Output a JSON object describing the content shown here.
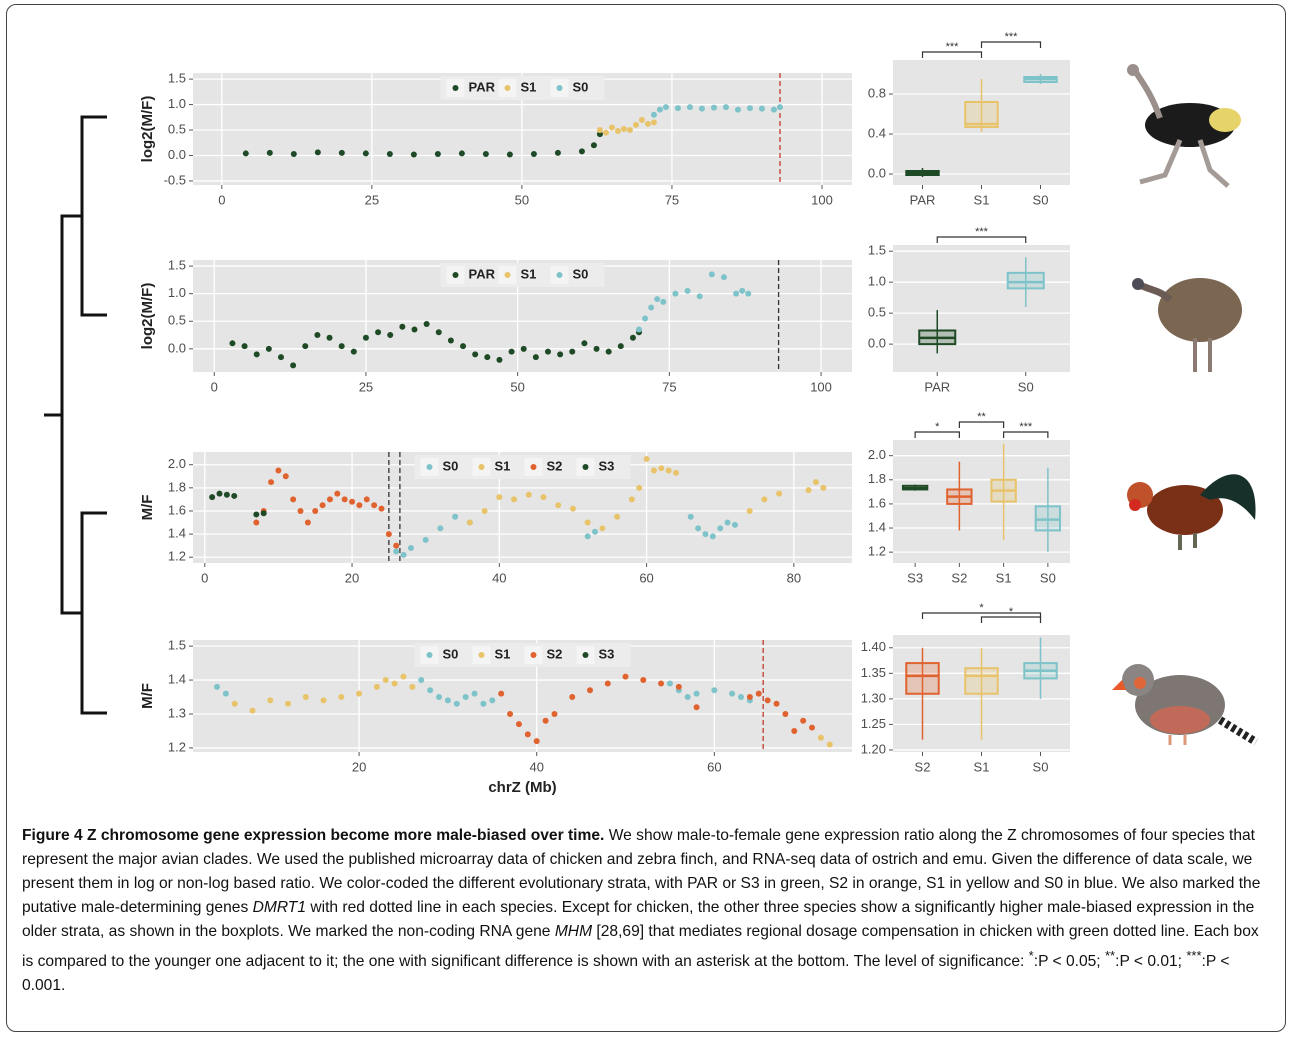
{
  "chart_data": [
    {
      "type": "scatter",
      "ylabel": "log2(M/F)",
      "xlim": [
        -4.8,
        105
      ],
      "ylim": [
        -0.58,
        1.62
      ],
      "xticks": [
        0,
        25,
        50,
        75,
        100
      ],
      "yticks": [
        -0.5,
        {
          "value": 0,
          "label": "0.0"
        },
        0.5,
        {
          "value": 1,
          "label": "1.0"
        },
        1.5
      ],
      "grid": true,
      "legend": "top",
      "markers": [
        {
          "x": 93,
          "color": "#c0392b"
        }
      ],
      "series": [
        {
          "name": "PAR",
          "color": "#1f4a26",
          "x": [
            4,
            8,
            12,
            16,
            20,
            24,
            28,
            32,
            36,
            40,
            44,
            48,
            52,
            56,
            60,
            62,
            63
          ],
          "values": [
            0.04,
            0.05,
            0.03,
            0.06,
            0.05,
            0.04,
            0.03,
            0.02,
            0.03,
            0.04,
            0.03,
            0.02,
            0.03,
            0.05,
            0.08,
            0.2,
            0.42
          ]
        },
        {
          "name": "S1",
          "color": "#e8c36a",
          "x": [
            63,
            64,
            65,
            66,
            67,
            68,
            69,
            70,
            71,
            72
          ],
          "values": [
            0.5,
            0.45,
            0.55,
            0.48,
            0.52,
            0.5,
            0.6,
            0.7,
            0.62,
            0.65
          ]
        },
        {
          "name": "S0",
          "color": "#7ec3c9",
          "x": [
            72,
            73,
            74,
            76,
            78,
            80,
            82,
            84,
            86,
            88,
            90,
            92,
            93
          ],
          "values": [
            0.8,
            0.9,
            0.95,
            0.93,
            0.95,
            0.92,
            0.94,
            0.95,
            0.9,
            0.93,
            0.92,
            0.9,
            0.95
          ]
        }
      ]
    },
    {
      "type": "box",
      "ylim": [
        -0.11,
        1.14
      ],
      "yticks": [
        {
          "value": 0,
          "label": "0.0"
        },
        0.4,
        0.8
      ],
      "categories": [
        "PAR",
        "S1",
        "S0"
      ],
      "colors": [
        "#1f4a26",
        "#e8c36a",
        "#7ec3c9"
      ],
      "boxes": [
        {
          "min": -0.03,
          "q1": -0.01,
          "median": 0.01,
          "q3": 0.03,
          "max": 0.06
        },
        {
          "min": 0.42,
          "q1": 0.47,
          "median": 0.5,
          "q3": 0.72,
          "max": 0.95
        },
        {
          "min": 0.9,
          "q1": 0.92,
          "median": 0.95,
          "q3": 0.97,
          "max": 1.0
        }
      ],
      "significance": [
        {
          "between": [
            "PAR",
            "S1"
          ],
          "label": "***"
        },
        {
          "between": [
            "S1",
            "S0"
          ],
          "label": "***"
        }
      ]
    },
    {
      "type": "scatter",
      "ylabel": "log2(M/F)",
      "xlim": [
        -3.5,
        105.1
      ],
      "ylim": [
        -0.42,
        1.61
      ],
      "xticks": [
        0,
        25,
        50,
        75,
        100
      ],
      "yticks": [
        {
          "value": 0,
          "label": "0.0"
        },
        0.5,
        {
          "value": 1,
          "label": "1.0"
        },
        1.5
      ],
      "grid": true,
      "legend": "top",
      "markers": [
        {
          "x": 93,
          "color": "#333333"
        }
      ],
      "series": [
        {
          "name": "PAR",
          "color": "#1f4a26",
          "x": [
            3,
            5,
            7,
            9,
            11,
            13,
            15,
            17,
            19,
            21,
            23,
            25,
            27,
            29,
            31,
            33,
            35,
            37,
            39,
            41,
            43,
            45,
            47,
            49,
            51,
            53,
            55,
            57,
            59,
            61,
            63,
            65,
            67,
            69,
            70
          ],
          "values": [
            0.1,
            0.05,
            -0.1,
            0.0,
            -0.15,
            -0.3,
            0.05,
            0.25,
            0.2,
            0.05,
            -0.05,
            0.2,
            0.3,
            0.25,
            0.4,
            0.35,
            0.45,
            0.3,
            0.15,
            0.05,
            -0.1,
            -0.15,
            -0.2,
            -0.05,
            0.0,
            -0.15,
            -0.05,
            -0.1,
            -0.05,
            0.1,
            0.0,
            -0.05,
            0.05,
            0.2,
            0.3
          ]
        },
        {
          "name": "S1",
          "color": "#e8c36a",
          "x": [],
          "values": []
        },
        {
          "name": "S0",
          "color": "#7ec3c9",
          "x": [
            70,
            71,
            72,
            73,
            74,
            76,
            78,
            80,
            82,
            84,
            86,
            87,
            88
          ],
          "values": [
            0.35,
            0.55,
            0.75,
            0.9,
            0.85,
            1.0,
            1.05,
            0.95,
            1.35,
            1.3,
            1.0,
            1.05,
            1.0
          ]
        }
      ]
    },
    {
      "type": "box",
      "ylim": [
        -0.45,
        1.6
      ],
      "yticks": [
        {
          "value": 0,
          "label": "0.0"
        },
        0.5,
        {
          "value": 1,
          "label": "1.0"
        },
        1.5
      ],
      "categories": [
        "PAR",
        "S0"
      ],
      "colors": [
        "#1f4a26",
        "#7ec3c9"
      ],
      "boxes": [
        {
          "min": -0.15,
          "q1": 0.0,
          "median": 0.1,
          "q3": 0.22,
          "max": 0.55
        },
        {
          "min": 0.6,
          "q1": 0.9,
          "median": 1.0,
          "q3": 1.15,
          "max": 1.4
        }
      ],
      "significance": [
        {
          "between": [
            "PAR",
            "S0"
          ],
          "label": "***"
        }
      ]
    },
    {
      "type": "scatter",
      "ylabel": "M/F",
      "xlim": [
        -1.6,
        87.9
      ],
      "ylim": [
        1.15,
        2.11
      ],
      "xticks": [
        0,
        20,
        40,
        60,
        80
      ],
      "yticks": [
        1.2,
        1.4,
        1.6,
        1.8,
        {
          "value": 2,
          "label": "2.0"
        }
      ],
      "grid": true,
      "legend": "top",
      "markers": [
        {
          "x": 25,
          "color": "#333333"
        },
        {
          "x": 26.5,
          "color": "#333333"
        }
      ],
      "series": [
        {
          "name": "S0",
          "color": "#7ec3c9",
          "x": [
            26,
            27,
            28,
            30,
            32,
            34,
            36,
            52,
            53,
            66,
            67,
            68,
            69,
            70,
            71,
            72
          ],
          "values": [
            1.25,
            1.22,
            1.28,
            1.35,
            1.45,
            1.55,
            1.5,
            1.38,
            1.42,
            1.55,
            1.45,
            1.4,
            1.38,
            1.45,
            1.5,
            1.48
          ]
        },
        {
          "name": "S1",
          "color": "#e8c36a",
          "x": [
            36,
            38,
            40,
            42,
            44,
            46,
            48,
            50,
            52,
            54,
            56,
            58,
            59,
            60,
            61,
            62,
            63,
            64,
            74,
            76,
            78,
            82,
            83,
            84
          ],
          "values": [
            1.5,
            1.6,
            1.72,
            1.7,
            1.74,
            1.72,
            1.65,
            1.62,
            1.5,
            1.45,
            1.55,
            1.7,
            1.8,
            2.05,
            1.95,
            1.97,
            1.95,
            1.93,
            1.6,
            1.7,
            1.75,
            1.78,
            1.85,
            1.8
          ]
        },
        {
          "name": "S2",
          "color": "#e0632f",
          "x": [
            7,
            8,
            9,
            10,
            11,
            12,
            13,
            14,
            15,
            16,
            17,
            18,
            19,
            20,
            21,
            22,
            23,
            24,
            25,
            26
          ],
          "values": [
            1.5,
            1.6,
            1.85,
            1.95,
            1.9,
            1.7,
            1.6,
            1.5,
            1.6,
            1.65,
            1.7,
            1.75,
            1.7,
            1.68,
            1.65,
            1.7,
            1.65,
            1.62,
            1.4,
            1.3
          ]
        },
        {
          "name": "S3",
          "color": "#1f4a26",
          "x": [
            1,
            2,
            3,
            4,
            7,
            8
          ],
          "values": [
            1.72,
            1.75,
            1.74,
            1.73,
            1.57,
            1.58
          ]
        }
      ]
    },
    {
      "type": "box",
      "ylim": [
        1.11,
        2.13
      ],
      "yticks": [
        1.2,
        1.4,
        1.6,
        1.8,
        {
          "value": 2,
          "label": "2.0"
        }
      ],
      "categories": [
        "S3",
        "S2",
        "S1",
        "S0"
      ],
      "colors": [
        "#1f4a26",
        "#e0632f",
        "#e8c36a",
        "#7ec3c9"
      ],
      "boxes": [
        {
          "min": 1.71,
          "q1": 1.72,
          "median": 1.73,
          "q3": 1.75,
          "max": 1.76
        },
        {
          "min": 1.38,
          "q1": 1.6,
          "median": 1.66,
          "q3": 1.72,
          "max": 1.95
        },
        {
          "min": 1.3,
          "q1": 1.62,
          "median": 1.71,
          "q3": 1.8,
          "max": 2.1
        },
        {
          "min": 1.2,
          "q1": 1.38,
          "median": 1.47,
          "q3": 1.58,
          "max": 1.9
        }
      ],
      "significance": [
        {
          "between": [
            "S3",
            "S2"
          ],
          "label": "*"
        },
        {
          "between": [
            "S2",
            "S1"
          ],
          "label": "**"
        },
        {
          "between": [
            "S1",
            "S0"
          ],
          "label": "***"
        }
      ]
    },
    {
      "type": "scatter",
      "ylabel": "M/F",
      "xlabel": "chrZ (Mb)",
      "xlim": [
        1.3,
        75.5
      ],
      "ylim": [
        1.188,
        1.518
      ],
      "xticks": [
        20,
        40,
        60
      ],
      "yticks": [
        1.2,
        1.3,
        1.4,
        1.5
      ],
      "grid": true,
      "legend": "top",
      "markers": [
        {
          "x": 65.5,
          "color": "#c0392b"
        }
      ],
      "series": [
        {
          "name": "S0",
          "color": "#7ec3c9",
          "x": [
            4,
            5,
            27,
            28,
            29,
            30,
            31,
            32,
            33,
            34,
            35,
            55,
            56,
            57,
            58,
            60,
            62,
            63,
            64
          ],
          "values": [
            1.38,
            1.36,
            1.4,
            1.37,
            1.35,
            1.34,
            1.33,
            1.35,
            1.36,
            1.33,
            1.34,
            1.39,
            1.37,
            1.35,
            1.36,
            1.37,
            1.36,
            1.35,
            1.34
          ]
        },
        {
          "name": "S1",
          "color": "#e8c36a",
          "x": [
            6,
            8,
            10,
            12,
            14,
            16,
            18,
            20,
            22,
            23,
            24,
            25,
            26,
            72,
            73
          ],
          "values": [
            1.33,
            1.31,
            1.34,
            1.33,
            1.35,
            1.34,
            1.35,
            1.36,
            1.38,
            1.4,
            1.39,
            1.41,
            1.38,
            1.23,
            1.21
          ]
        },
        {
          "name": "S2",
          "color": "#e0632f",
          "x": [
            36,
            37,
            38,
            39,
            40,
            41,
            42,
            44,
            46,
            48,
            50,
            52,
            54,
            56,
            58,
            64,
            65,
            66,
            67,
            68,
            69,
            70,
            71
          ],
          "values": [
            1.36,
            1.3,
            1.27,
            1.24,
            1.22,
            1.28,
            1.3,
            1.35,
            1.37,
            1.39,
            1.41,
            1.4,
            1.39,
            1.38,
            1.32,
            1.35,
            1.36,
            1.34,
            1.33,
            1.3,
            1.25,
            1.28,
            1.26
          ]
        },
        {
          "name": "S3",
          "color": "#1f4a26",
          "x": [],
          "values": []
        }
      ]
    },
    {
      "type": "box",
      "ylim": [
        1.196,
        1.425
      ],
      "yticks": [
        {
          "value": 1.2,
          "label": "1.20"
        },
        {
          "value": 1.25,
          "label": "1.25"
        },
        {
          "value": 1.3,
          "label": "1.30"
        },
        {
          "value": 1.35,
          "label": "1.35"
        },
        {
          "value": 1.4,
          "label": "1.40"
        }
      ],
      "categories": [
        "S2",
        "S1",
        "S0"
      ],
      "colors": [
        "#e0632f",
        "#e8c36a",
        "#7ec3c9"
      ],
      "boxes": [
        {
          "min": 1.22,
          "q1": 1.31,
          "median": 1.345,
          "q3": 1.37,
          "max": 1.4
        },
        {
          "min": 1.22,
          "q1": 1.31,
          "median": 1.345,
          "q3": 1.36,
          "max": 1.4
        },
        {
          "min": 1.3,
          "q1": 1.34,
          "median": 1.355,
          "q3": 1.37,
          "max": 1.42
        }
      ],
      "significance": [
        {
          "between": [
            "S2",
            "S0"
          ],
          "label": "*"
        },
        {
          "between": [
            "S1",
            "S0"
          ],
          "label": "*"
        }
      ]
    }
  ],
  "caption": {
    "title": "Figure 4 Z chromosome gene expression become more male-biased over time.",
    "body": [
      " We show male-to-female gene expression ratio along the Z chromosomes of four species that represent the major avian clades. We used the published microarray data of chicken and zebra finch, and RNA-seq data of ostrich and emu. Given the difference of data scale, we present them in log or non-log based ratio. We color-coded the different evolutionary strata, with PAR or S3 in green, S2 in orange, S1 in yellow and S0 in blue. We also marked the putative male-determining genes ",
      "DMRT1",
      " with red dotted line in each species. Except for chicken, the other three species show a significantly higher male-biased expression in the older strata, as shown in the boxplots. We marked the non-coding RNA gene ",
      "MHM",
      " [28,69] that mediates regional dosage compensation in chicken with green dotted line. Each box is compared to the younger one adjacent to it; the one with significant difference is shown with an asterisk at the bottom. The level of significance: ",
      "*",
      ":P < 0.05; ",
      "**",
      ":P < 0.01; ",
      "***",
      ":P < 0.001."
    ]
  }
}
